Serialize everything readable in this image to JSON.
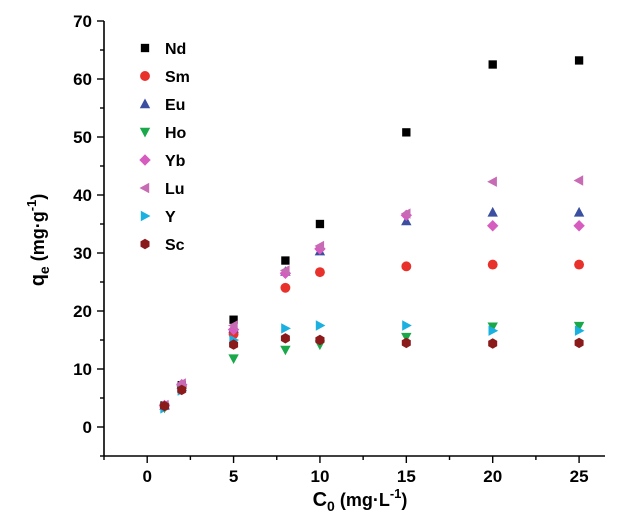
{
  "chart_data": {
    "type": "scatter",
    "xlabel": {
      "base": "C",
      "sub": "0",
      "unit_pre": " (mg·L",
      "unit_sup": "-1",
      "unit_post": ")"
    },
    "ylabel": {
      "base": "q",
      "sub": "e",
      "unit_pre": " (mg·g",
      "unit_sup": "-1",
      "unit_post": ")"
    },
    "xlim": [
      -2.5,
      26.5
    ],
    "ylim": [
      -5,
      70
    ],
    "xticks": [
      0,
      5,
      10,
      15,
      20,
      25
    ],
    "yticks": [
      0,
      10,
      20,
      30,
      40,
      50,
      60,
      70
    ],
    "grid": false,
    "legend_position": "top-left",
    "series": [
      {
        "name": "Nd",
        "marker": "square",
        "color": "#000000",
        "x": [
          1,
          2,
          5,
          8,
          10,
          15,
          20,
          25
        ],
        "y": [
          3.7,
          7.2,
          18.5,
          28.7,
          35.0,
          50.8,
          62.5,
          63.2
        ]
      },
      {
        "name": "Sm",
        "marker": "circle",
        "color": "#e8312a",
        "x": [
          1,
          2,
          5,
          8,
          10,
          15,
          20,
          25
        ],
        "y": [
          3.6,
          7.0,
          16.0,
          24.0,
          26.7,
          27.7,
          28.0,
          28.0
        ]
      },
      {
        "name": "Eu",
        "marker": "triangle-up",
        "color": "#3a4fa0",
        "x": [
          1,
          2,
          5,
          8,
          10,
          15,
          20,
          25
        ],
        "y": [
          3.7,
          7.3,
          17.0,
          26.8,
          30.3,
          35.5,
          37.0,
          37.0
        ]
      },
      {
        "name": "Ho",
        "marker": "triangle-down",
        "color": "#1aa84a",
        "x": [
          1,
          2,
          5,
          8,
          10,
          15,
          20,
          25
        ],
        "y": [
          3.3,
          6.5,
          11.8,
          13.3,
          14.2,
          15.5,
          17.3,
          17.4
        ]
      },
      {
        "name": "Yb",
        "marker": "diamond",
        "color": "#d65cc0",
        "x": [
          1,
          2,
          5,
          8,
          10,
          15,
          20,
          25
        ],
        "y": [
          3.7,
          7.3,
          16.8,
          26.5,
          30.7,
          36.5,
          34.7,
          34.7
        ]
      },
      {
        "name": "Lu",
        "marker": "triangle-left",
        "color": "#c76bb5",
        "x": [
          1,
          2,
          5,
          8,
          10,
          15,
          20,
          25
        ],
        "y": [
          3.8,
          7.5,
          17.5,
          27.0,
          31.2,
          36.8,
          42.3,
          42.5
        ]
      },
      {
        "name": "Y",
        "marker": "triangle-right",
        "color": "#1ab0e0",
        "x": [
          1,
          2,
          5,
          8,
          10,
          15,
          20,
          25
        ],
        "y": [
          3.2,
          6.3,
          15.0,
          17.0,
          17.5,
          17.5,
          16.6,
          16.6
        ]
      },
      {
        "name": "Sc",
        "marker": "hexagon",
        "color": "#8b1a1a",
        "x": [
          1,
          2,
          5,
          8,
          10,
          15,
          20,
          25
        ],
        "y": [
          3.6,
          6.4,
          14.2,
          15.3,
          15.0,
          14.5,
          14.4,
          14.5
        ]
      }
    ]
  }
}
